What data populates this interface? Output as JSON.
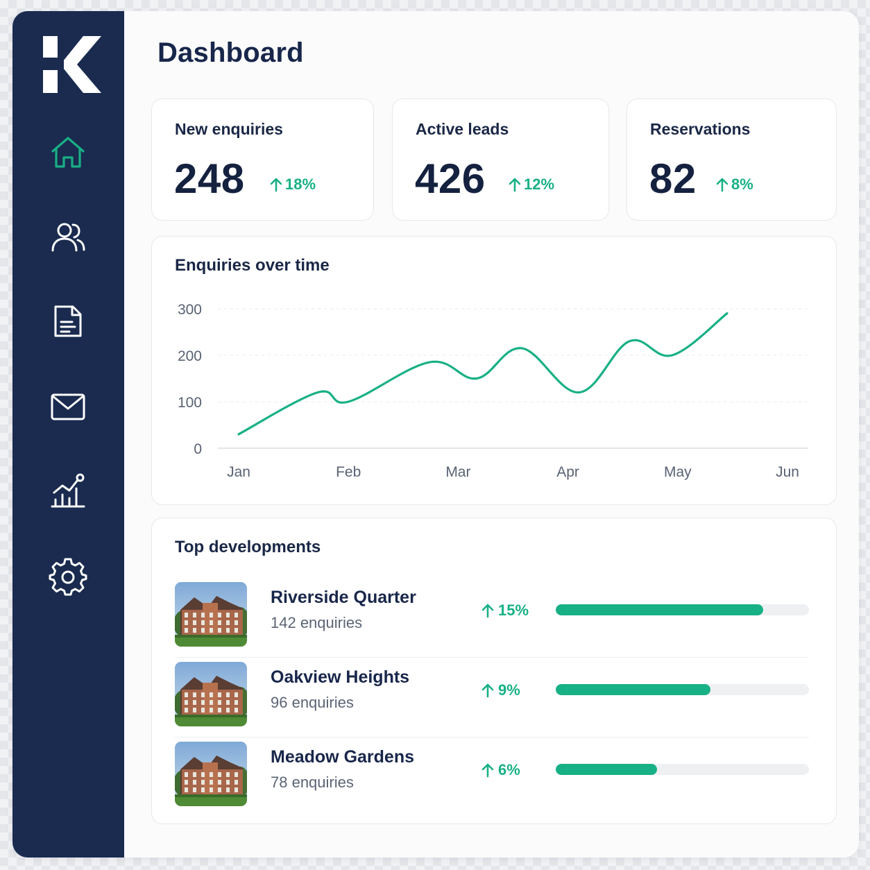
{
  "brand": {
    "logo_icon": "k-logo-icon",
    "accent": "#18b085",
    "sidebar_bg": "#1a2b4f"
  },
  "sidebar": {
    "items": [
      {
        "icon": "home-icon",
        "active": true
      },
      {
        "icon": "users-icon",
        "active": false
      },
      {
        "icon": "document-icon",
        "active": false
      },
      {
        "icon": "mail-icon",
        "active": false
      },
      {
        "icon": "analytics-icon",
        "active": false
      },
      {
        "icon": "settings-icon",
        "active": false
      }
    ]
  },
  "header": {
    "title": "Dashboard"
  },
  "stats": [
    {
      "label": "New enquiries",
      "value": "248",
      "change": "18%"
    },
    {
      "label": "Active leads",
      "value": "426",
      "change": "12%"
    },
    {
      "label": "Reservations",
      "value": "82",
      "change": "8%"
    }
  ],
  "chart": {
    "title": "Enquiries over time"
  },
  "chart_data": {
    "type": "line",
    "title": "Enquiries over time",
    "categories": [
      "Jan",
      "Feb",
      "Mar",
      "Apr",
      "May",
      "Jun"
    ],
    "x": [
      0,
      0.72,
      1.0,
      1.74,
      2.17,
      2.58,
      3.1,
      3.56,
      3.95,
      4.45,
      4.85,
      5.0
    ],
    "values": [
      30,
      120,
      100,
      185,
      150,
      215,
      120,
      230,
      200,
      290,
      290,
      290
    ],
    "ylim": [
      0,
      300
    ],
    "yticks": [
      0,
      100,
      200,
      300
    ],
    "grid": true,
    "xlabel": "",
    "ylabel": ""
  },
  "developments": {
    "title": "Top developments",
    "items": [
      {
        "name": "Riverside Quarter",
        "count": "142 enquiries",
        "change": "15%",
        "progress": 0.82
      },
      {
        "name": "Oakview Heights",
        "count": "96 enquiries",
        "change": "9%",
        "progress": 0.61
      },
      {
        "name": "Meadow Gardens",
        "count": "78 enquiries",
        "change": "6%",
        "progress": 0.4
      }
    ]
  }
}
